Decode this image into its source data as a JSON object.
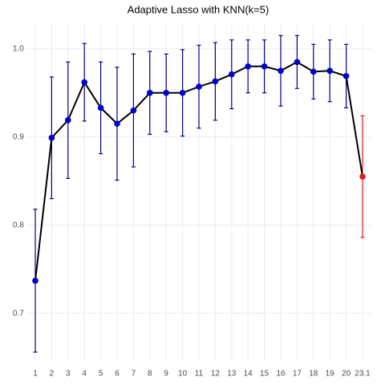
{
  "chart_data": {
    "type": "line",
    "title": "Adaptive Lasso with KNN(k=5)",
    "categories": [
      "1",
      "2",
      "3",
      "4",
      "5",
      "6",
      "7",
      "8",
      "9",
      "10",
      "11",
      "12",
      "13",
      "14",
      "15",
      "16",
      "17",
      "18",
      "19",
      "20",
      "23.1"
    ],
    "series": [
      {
        "values": [
          0.737,
          0.899,
          0.919,
          0.962,
          0.933,
          0.915,
          0.93,
          0.95,
          0.95,
          0.95,
          0.957,
          0.963,
          0.971,
          0.98,
          0.98,
          0.975,
          0.985,
          0.974,
          0.975,
          0.969,
          0.855
        ],
        "errors": [
          0.081,
          0.069,
          0.066,
          0.044,
          0.052,
          0.064,
          0.064,
          0.047,
          0.044,
          0.049,
          0.047,
          0.044,
          0.039,
          0.03,
          0.03,
          0.04,
          0.03,
          0.031,
          0.035,
          0.036,
          0.069
        ],
        "color": "#000000",
        "point_colors": [
          "#0000cc",
          "#0000cc",
          "#0000cc",
          "#0000cc",
          "#0000cc",
          "#0000cc",
          "#0000cc",
          "#0000cc",
          "#0000cc",
          "#0000cc",
          "#0000cc",
          "#0000cc",
          "#0000cc",
          "#0000cc",
          "#0000cc",
          "#0000cc",
          "#0000cc",
          "#0000cc",
          "#0000cc",
          "#0000cc",
          "#e41a1c"
        ],
        "error_colors": [
          "#00008b",
          "#00008b",
          "#00008b",
          "#00008b",
          "#00008b",
          "#00008b",
          "#00008b",
          "#00008b",
          "#00008b",
          "#00008b",
          "#00008b",
          "#00008b",
          "#00008b",
          "#00008b",
          "#00008b",
          "#00008b",
          "#00008b",
          "#00008b",
          "#00008b",
          "#00008b",
          "#e41a1c"
        ]
      }
    ],
    "ylim": [
      0.646,
      1.028
    ],
    "yticks": [
      0.7,
      0.8,
      0.9,
      {
        "value": 1,
        "label": "1.0"
      }
    ],
    "grid": true
  }
}
